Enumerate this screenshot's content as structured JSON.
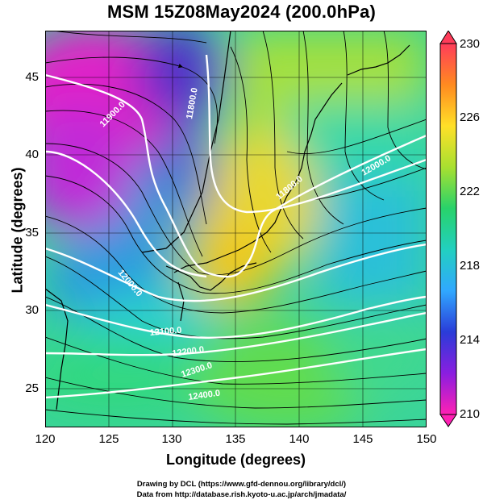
{
  "title": "MSM 15Z08May2024 (200.0hPa)",
  "axes": {
    "xlabel": "Longitude (degrees)",
    "ylabel": "Latitude  (degrees)",
    "xlim": [
      120,
      150
    ],
    "ylim": [
      22.5,
      48
    ],
    "xticks": [
      "120",
      "125",
      "130",
      "135",
      "140",
      "145",
      "150"
    ],
    "yticks": [
      "25",
      "30",
      "35",
      "40",
      "45"
    ]
  },
  "colorbar": {
    "min": 210,
    "max": 230,
    "labels": [
      "230",
      "226",
      "222",
      "218",
      "214",
      "210"
    ],
    "colors": [
      "#ff3c5a",
      "#ff8a20",
      "#ffe028",
      "#a8e030",
      "#28d26a",
      "#22d0c0",
      "#30a8ff",
      "#2a3cd8",
      "#8a1ee0",
      "#ff20b4"
    ]
  },
  "contour_labels": [
    {
      "text": "11800.0"
    },
    {
      "text": "11800.0"
    },
    {
      "text": "11900.0"
    },
    {
      "text": "12000.0"
    },
    {
      "text": "12000.0"
    },
    {
      "text": "12100.0"
    },
    {
      "text": "12200.0"
    },
    {
      "text": "12300.0"
    },
    {
      "text": "12400.0"
    }
  ],
  "credits": {
    "line1": "Drawing by DCL (https://www.gfd-dennou.org/library/dcl/)",
    "line2": "Data from http://database.rish.kyoto-u.ac.jp/arch/jmadata/"
  }
}
